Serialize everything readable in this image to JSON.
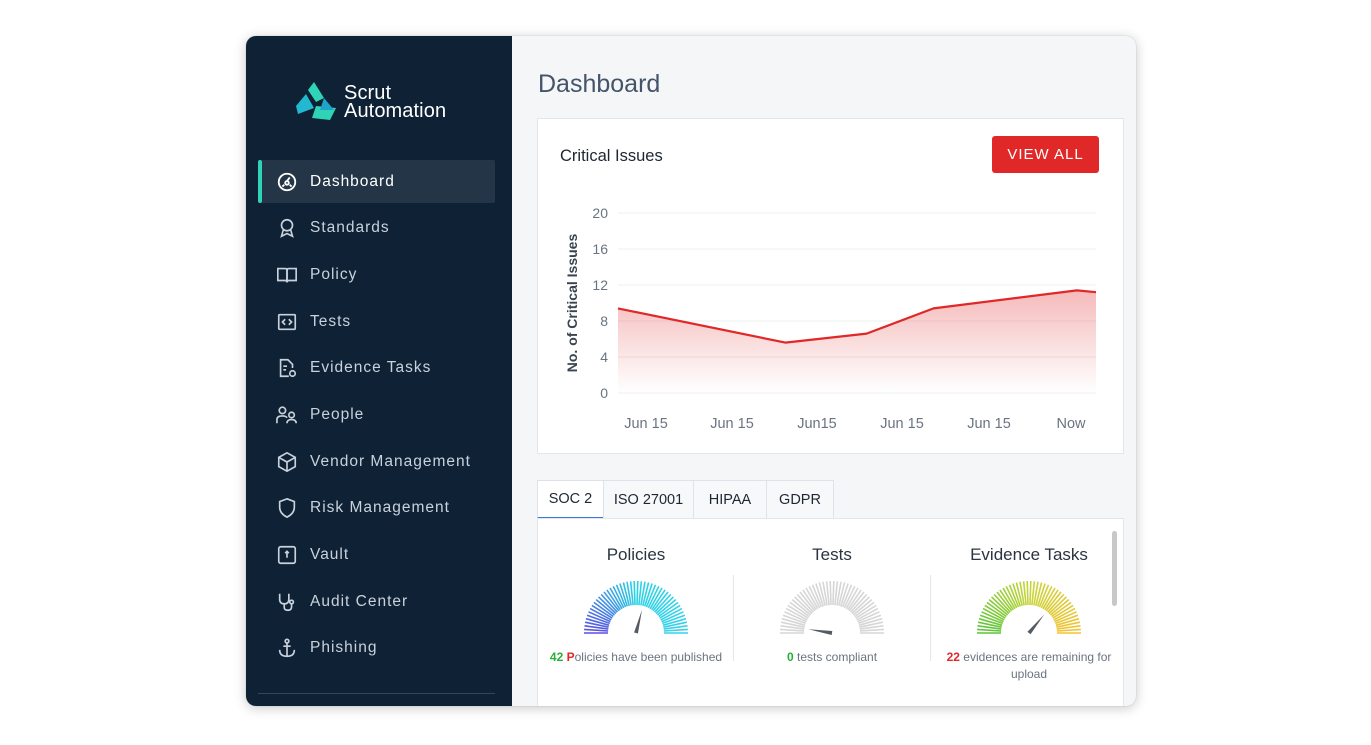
{
  "app": {
    "logo_line1": "Scrut",
    "logo_line2": "Automation",
    "accent_color": "#2fd3b6"
  },
  "sidebar": {
    "items": [
      {
        "label": "Dashboard",
        "icon": "dashboard-icon",
        "active": true
      },
      {
        "label": "Standards",
        "icon": "award-icon"
      },
      {
        "label": "Policy",
        "icon": "book-icon"
      },
      {
        "label": "Tests",
        "icon": "code-icon"
      },
      {
        "label": "Evidence Tasks",
        "icon": "document-gear-icon"
      },
      {
        "label": "People",
        "icon": "people-icon"
      },
      {
        "label": "Vendor Management",
        "icon": "box-icon"
      },
      {
        "label": "Risk Management",
        "icon": "shield-icon"
      },
      {
        "label": "Vault",
        "icon": "vault-icon"
      },
      {
        "label": "Audit Center",
        "icon": "stethoscope-icon"
      },
      {
        "label": "Phishing",
        "icon": "anchor-icon"
      }
    ]
  },
  "main": {
    "title": "Dashboard",
    "critical_card": {
      "title": "Critical Issues",
      "view_all_label": "VIEW ALL"
    },
    "tabs": [
      {
        "label": "SOC 2",
        "active": true
      },
      {
        "label": "ISO 27001"
      },
      {
        "label": "HIPAA"
      },
      {
        "label": "GDPR"
      }
    ],
    "metrics": [
      {
        "title": "Policies",
        "count": "42",
        "prefix_letter": "P",
        "rest": "olicies have been published"
      },
      {
        "title": "Tests",
        "count": "0",
        "text": " tests compliant"
      },
      {
        "title": "Evidence Tasks",
        "count": "22",
        "text": " evidences are remaining for upload"
      }
    ]
  },
  "chart_data": {
    "type": "area",
    "ylabel": "No. of Critical Issues",
    "xlabel": "",
    "ylim": [
      0,
      20
    ],
    "yticks": [
      0,
      4,
      8,
      12,
      16,
      20
    ],
    "x_tick_labels": [
      "Jun 15",
      "Jun 15",
      "Jun15",
      "Jun 15",
      "Jun 15",
      "Now"
    ],
    "series": [
      {
        "values": [
          9.4,
          5.6,
          6.6,
          9.4,
          11.4,
          11.2
        ],
        "color": "#e02828"
      }
    ],
    "x_points": [
      0,
      0.35,
      0.52,
      0.66,
      0.96,
      1.0
    ],
    "grid": true
  }
}
